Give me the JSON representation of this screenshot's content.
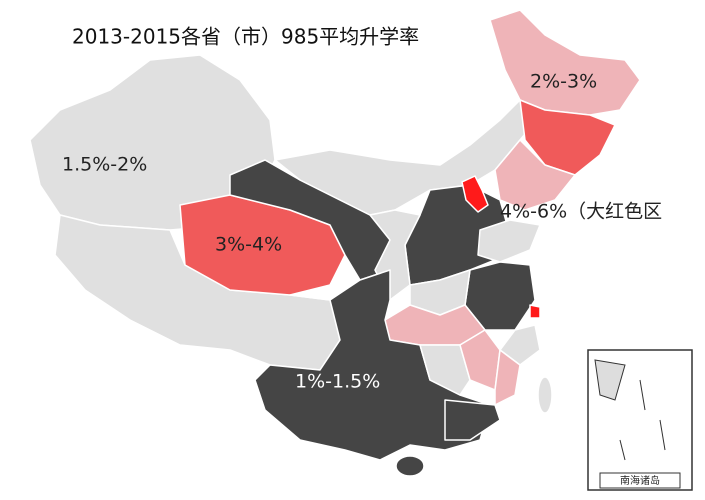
{
  "title": "2013-2015各省（市）985平均升学率",
  "labels": [
    "2%-3%",
    "1.5%-2%",
    "3%-4%",
    "4%-6%（大红色区",
    "1%-1.5%"
  ],
  "inset": {
    "caption": "南海诸岛"
  }
}
